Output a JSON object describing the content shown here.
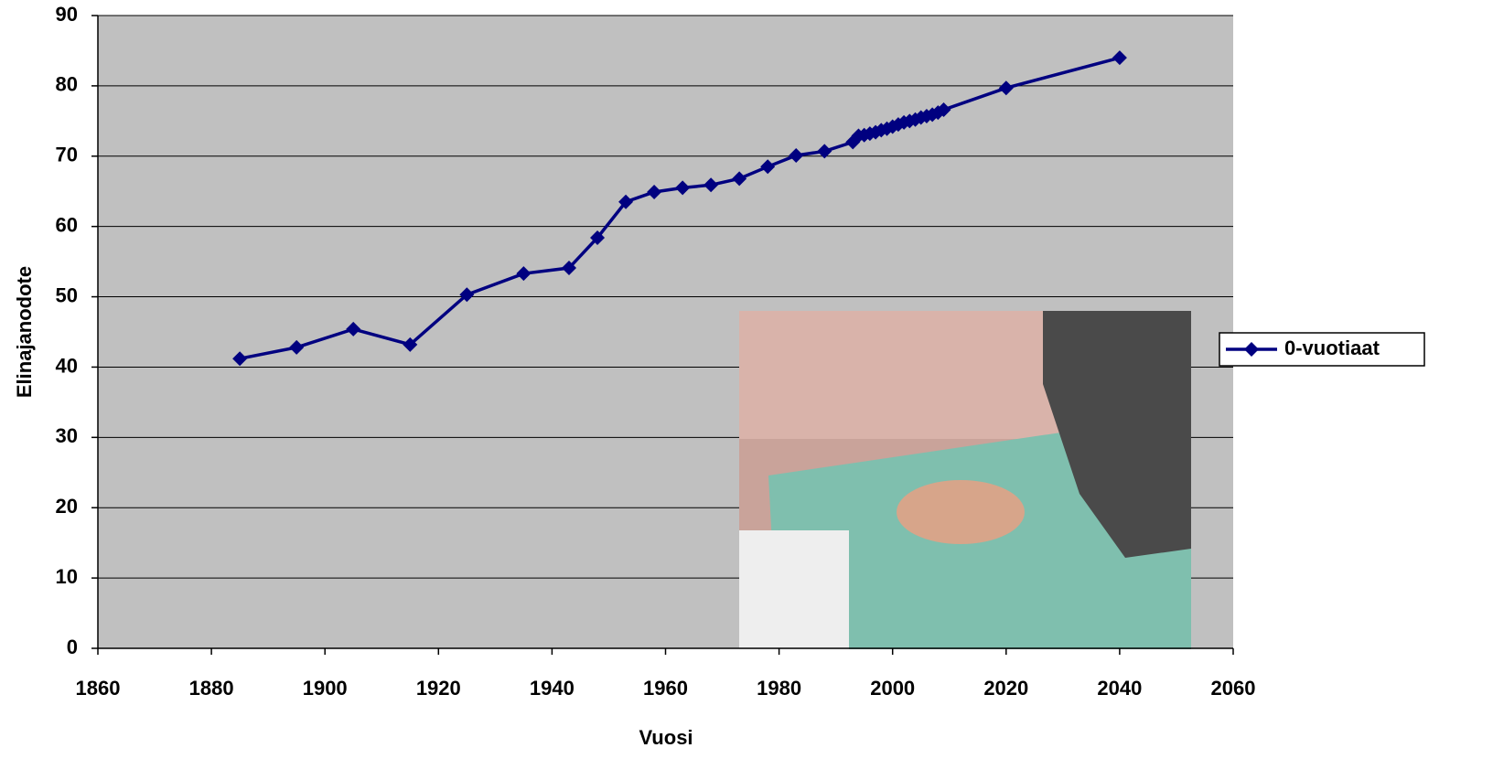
{
  "chart_data": {
    "type": "line",
    "x_label": "Vuosi",
    "y_label": "Elinajanodote",
    "x": [
      1885,
      1895,
      1905,
      1915,
      1925,
      1935,
      1943,
      1948,
      1953,
      1958,
      1963,
      1968,
      1973,
      1978,
      1983,
      1988,
      1993,
      1994,
      1995,
      1996,
      1997,
      1998,
      1999,
      2000,
      2001,
      2002,
      2003,
      2004,
      2005,
      2006,
      2007,
      2008,
      2009,
      2020,
      2040
    ],
    "series": [
      {
        "name": "0-vuotiaat",
        "color": "#000080",
        "values": [
          41.2,
          42.8,
          45.4,
          43.2,
          50.3,
          53.3,
          54.1,
          58.4,
          63.5,
          64.9,
          65.5,
          65.9,
          66.8,
          68.5,
          70.1,
          70.7,
          72.0,
          72.9,
          73.0,
          73.2,
          73.4,
          73.7,
          73.9,
          74.2,
          74.5,
          74.8,
          75.0,
          75.2,
          75.5,
          75.7,
          75.9,
          76.2,
          76.6,
          79.7,
          84.0
        ]
      }
    ],
    "xlim": [
      1860,
      2060
    ],
    "xticks": [
      1860,
      1880,
      1900,
      1920,
      1940,
      1960,
      1980,
      2000,
      2020,
      2040,
      2060
    ],
    "ylim": [
      0,
      90
    ],
    "yticks": [
      0,
      10,
      20,
      30,
      40,
      50,
      60,
      70,
      80,
      90
    ],
    "grid": true,
    "legend": "right"
  }
}
